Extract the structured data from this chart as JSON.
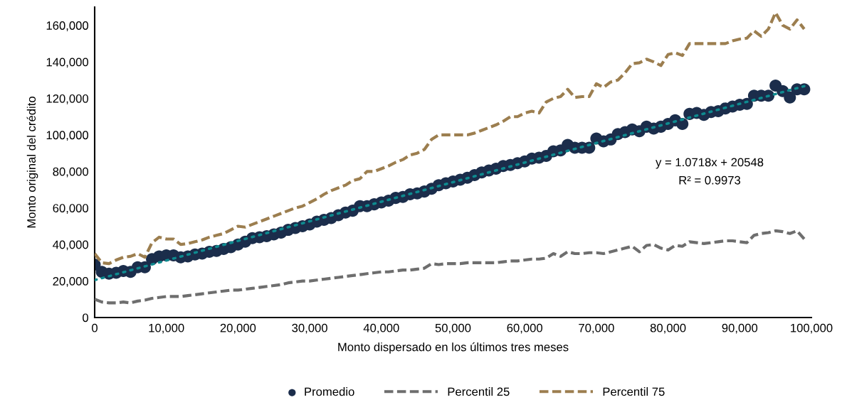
{
  "chart_data": {
    "type": "scatter",
    "xlabel": "Monto dispersado en los últimos tres meses",
    "ylabel": "Monto original del crédito",
    "x": [
      0,
      1000,
      2000,
      3000,
      4000,
      5000,
      6000,
      7000,
      8000,
      9000,
      10000,
      11000,
      12000,
      13000,
      14000,
      15000,
      16000,
      17000,
      18000,
      19000,
      20000,
      21000,
      22000,
      23000,
      24000,
      25000,
      26000,
      27000,
      28000,
      29000,
      30000,
      31000,
      32000,
      33000,
      34000,
      35000,
      36000,
      37000,
      38000,
      39000,
      40000,
      41000,
      42000,
      43000,
      44000,
      45000,
      46000,
      47000,
      48000,
      49000,
      50000,
      51000,
      52000,
      53000,
      54000,
      55000,
      56000,
      57000,
      58000,
      59000,
      60000,
      61000,
      62000,
      63000,
      64000,
      65000,
      66000,
      67000,
      68000,
      69000,
      70000,
      71000,
      72000,
      73000,
      74000,
      75000,
      76000,
      77000,
      78000,
      79000,
      80000,
      81000,
      82000,
      83000,
      84000,
      85000,
      86000,
      87000,
      88000,
      89000,
      90000,
      91000,
      92000,
      93000,
      94000,
      95000,
      96000,
      97000,
      98000,
      99000
    ],
    "series": [
      {
        "name": "Promedio",
        "marker": "circle",
        "color": "#1b2d4b",
        "values": [
          29000,
          25000,
          24000,
          24500,
          25500,
          25000,
          27500,
          27500,
          32000,
          33500,
          34000,
          34000,
          33000,
          33500,
          34500,
          35000,
          36000,
          36500,
          37500,
          38500,
          40000,
          41500,
          43500,
          44000,
          44500,
          45500,
          46500,
          48000,
          49000,
          50000,
          51000,
          52500,
          53500,
          54500,
          56000,
          57500,
          58500,
          61000,
          61000,
          62000,
          63000,
          64000,
          65500,
          66000,
          67500,
          68000,
          69000,
          70500,
          72500,
          73500,
          74500,
          75500,
          76500,
          78000,
          79500,
          80500,
          81500,
          83000,
          83500,
          84500,
          85500,
          87000,
          87500,
          88500,
          91000,
          91500,
          94500,
          93000,
          93000,
          93000,
          98000,
          96500,
          97500,
          100500,
          101500,
          103000,
          102000,
          104500,
          103500,
          104500,
          106000,
          108000,
          106000,
          111500,
          112000,
          111000,
          112500,
          113000,
          114500,
          115500,
          116500,
          117000,
          121500,
          121500,
          121500,
          127000,
          124000,
          120500,
          125000,
          125000
        ]
      },
      {
        "name": "Percentil 25",
        "type": "line",
        "line_style": "dashed",
        "color": "#6e6e6e",
        "values": [
          10000,
          8500,
          8000,
          8000,
          8500,
          8000,
          9000,
          9500,
          10500,
          11000,
          11500,
          11500,
          11500,
          12000,
          12500,
          13000,
          13500,
          14000,
          14500,
          15000,
          15000,
          15500,
          16000,
          16500,
          17000,
          17500,
          18000,
          19000,
          19500,
          20000,
          20000,
          20500,
          21000,
          21500,
          22000,
          22500,
          23000,
          23500,
          24000,
          24500,
          25000,
          25000,
          25500,
          26000,
          26000,
          26500,
          27000,
          29500,
          29000,
          29500,
          29500,
          29500,
          30000,
          30000,
          30000,
          30000,
          30000,
          30500,
          31000,
          31000,
          31500,
          32000,
          32000,
          32500,
          35000,
          33500,
          36000,
          35000,
          35000,
          35500,
          35500,
          35000,
          36000,
          37000,
          38000,
          39000,
          36000,
          39500,
          40000,
          38000,
          37000,
          39500,
          39000,
          41500,
          41000,
          40500,
          41000,
          41500,
          42000,
          42000,
          41500,
          41000,
          45000,
          46000,
          46500,
          47500,
          47000,
          46000,
          47500,
          43000
        ]
      },
      {
        "name": "Percentil 75",
        "type": "line",
        "line_style": "dashed",
        "color": "#9c7e4f",
        "values": [
          35000,
          30000,
          29500,
          31500,
          33000,
          33500,
          35000,
          33000,
          41000,
          44000,
          43000,
          43000,
          40000,
          40500,
          41500,
          42500,
          44000,
          45000,
          46000,
          48000,
          50000,
          49500,
          51000,
          52500,
          54000,
          55500,
          57000,
          58500,
          60000,
          61000,
          63000,
          65000,
          67500,
          69500,
          71000,
          72500,
          75000,
          76000,
          80000,
          80000,
          81500,
          83000,
          85000,
          86500,
          89000,
          90000,
          92000,
          97500,
          100000,
          100000,
          100000,
          100000,
          100000,
          101000,
          102500,
          104000,
          105500,
          107500,
          110000,
          110000,
          112000,
          113000,
          112000,
          118000,
          120000,
          121000,
          125000,
          120500,
          121000,
          121000,
          128000,
          126000,
          129000,
          130000,
          134000,
          139000,
          139500,
          141500,
          140000,
          138000,
          144000,
          145000,
          143500,
          150000,
          150000,
          150000,
          150000,
          150000,
          150000,
          151500,
          152500,
          153000,
          157000,
          154000,
          158000,
          167000,
          160000,
          158000,
          163000,
          158000
        ]
      },
      {
        "type": "line",
        "line_style": "dotted",
        "color": "#0e8a8f",
        "x": [
          0,
          99000
        ],
        "values": [
          20500,
          126700
        ]
      }
    ],
    "annotations": [
      "y = 1.0718x + 20548",
      "R² = 0.9973"
    ],
    "xlim": [
      0,
      100000
    ],
    "ylim": [
      0,
      170000
    ],
    "xticks": [
      0,
      {
        "value": 10000,
        "label": "10,000"
      },
      {
        "value": 20000,
        "label": "20,000"
      },
      {
        "value": 30000,
        "label": "30,000"
      },
      {
        "value": 40000,
        "label": "40,000"
      },
      {
        "value": 50000,
        "label": "50,000"
      },
      {
        "value": 60000,
        "label": "60,000"
      },
      {
        "value": 70000,
        "label": "70,000"
      },
      {
        "value": 80000,
        "label": "80,000"
      },
      {
        "value": 90000,
        "label": "90,000"
      },
      {
        "value": 100000,
        "label": "100,000"
      }
    ],
    "yticks": [
      0,
      {
        "value": 20000,
        "label": "20,000"
      },
      {
        "value": 40000,
        "label": "40,000"
      },
      {
        "value": 60000,
        "label": "60,000"
      },
      {
        "value": 80000,
        "label": "80,000"
      },
      {
        "value": 100000,
        "label": "100,000"
      },
      {
        "value": 120000,
        "label": "120,000"
      },
      {
        "value": 140000,
        "label": "140,000"
      },
      {
        "value": 160000,
        "label": "160,000"
      }
    ],
    "grid": false,
    "legend": "bottom"
  }
}
